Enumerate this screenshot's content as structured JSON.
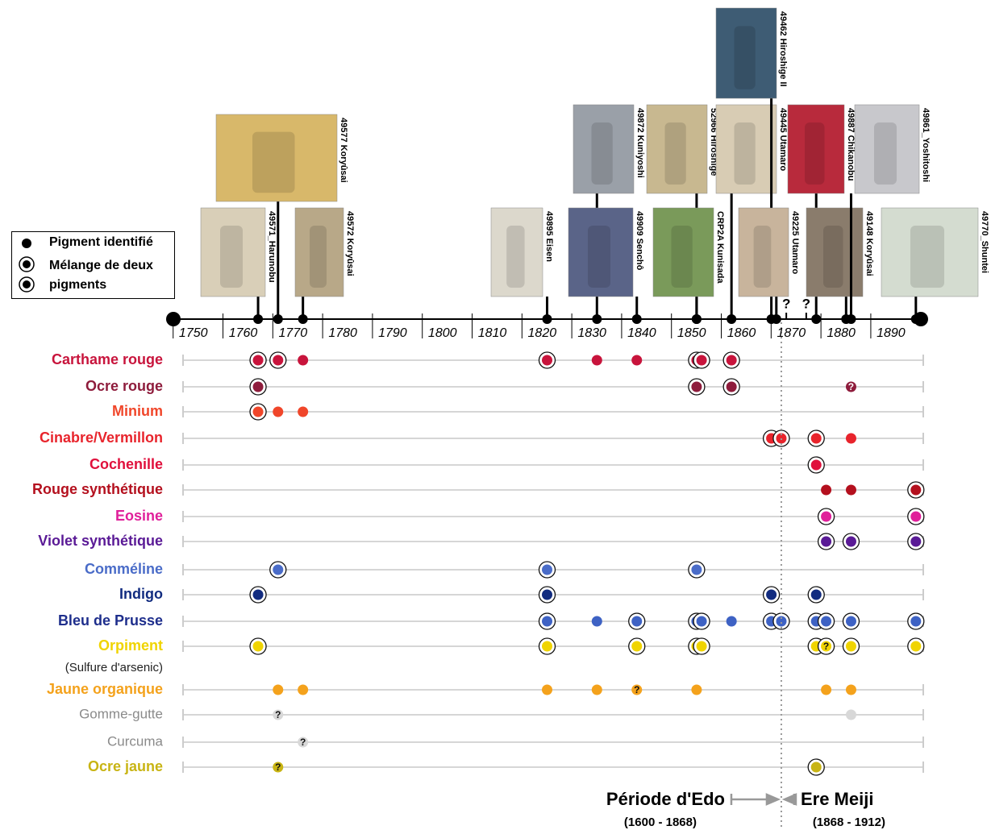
{
  "legend": {
    "single": "Pigment identifié",
    "mixture": "Mélange de deux pigments"
  },
  "axis": {
    "xlim": [
      1746,
      1896
    ],
    "ticks": [
      1750,
      1760,
      1770,
      1780,
      1790,
      1800,
      1810,
      1820,
      1830,
      1840,
      1850,
      1860,
      1870,
      1880,
      1890
    ]
  },
  "axis_marks": [
    {
      "year": 1869,
      "label": "?"
    },
    {
      "year": 1873,
      "label": "?"
    }
  ],
  "prints": [
    {
      "label": "49571_Harunobu",
      "year": 1763
    },
    {
      "label": "49577 Koryûsai",
      "year": 1767
    },
    {
      "label": "49572 Koryûsai",
      "year": 1772
    },
    {
      "label": "49895 Eisen",
      "year": 1821
    },
    {
      "label": "49872 Kuniyoshi",
      "year": 1831
    },
    {
      "label": "49909 Senchô",
      "year": 1839
    },
    {
      "label": "52966 Hiroshige",
      "year": 1851
    },
    {
      "label": "CRP2A Kunisada",
      "year": 1851
    },
    {
      "label": "49445 Utamaro",
      "year": 1858
    },
    {
      "label": "49462 Hiroshige II",
      "year": 1866
    },
    {
      "label": "49225 Utamaro",
      "year": 1867
    },
    {
      "label": "49887 Chikanobu",
      "year": 1875
    },
    {
      "label": "49148 Koryûsai",
      "year": 1881
    },
    {
      "label": "49861_Yoshitoshi",
      "year": 1882
    },
    {
      "label": "49770_Shuntei",
      "year": 1895
    }
  ],
  "pigments": [
    {
      "name": "Carthame rouge",
      "color": "#c8143c",
      "dots": [
        {
          "year": 1763,
          "mixture": true
        },
        {
          "year": 1767,
          "mixture": true
        },
        {
          "year": 1772,
          "mixture": false
        },
        {
          "year": 1821,
          "mixture": true
        },
        {
          "year": 1831,
          "mixture": false
        },
        {
          "year": 1839,
          "mixture": false
        },
        {
          "year": 1851,
          "mixture": true
        },
        {
          "year": 1852,
          "mixture": true
        },
        {
          "year": 1858,
          "mixture": true
        }
      ]
    },
    {
      "name": "Ocre rouge",
      "color": "#8e1c3c",
      "dots": [
        {
          "year": 1763,
          "mixture": true
        },
        {
          "year": 1851,
          "mixture": true
        },
        {
          "year": 1858,
          "mixture": true
        },
        {
          "year": 1882,
          "mixture": false,
          "label": "?"
        }
      ]
    },
    {
      "name": "Minium",
      "color": "#f0462a",
      "dots": [
        {
          "year": 1763,
          "mixture": true
        },
        {
          "year": 1767,
          "mixture": false
        },
        {
          "year": 1772,
          "mixture": false
        }
      ]
    },
    {
      "name": "Cinabre/Vermillon",
      "color": "#e8242c",
      "dots": [
        {
          "year": 1866,
          "mixture": true
        },
        {
          "year": 1868,
          "mixture": true
        },
        {
          "year": 1875,
          "mixture": true
        },
        {
          "year": 1882,
          "mixture": false
        }
      ]
    },
    {
      "name": "Cochenille",
      "color": "#e0103c",
      "dots": [
        {
          "year": 1875,
          "mixture": true
        }
      ]
    },
    {
      "name": "Rouge synthétique",
      "color": "#b4101e",
      "dots": [
        {
          "year": 1877,
          "mixture": false
        },
        {
          "year": 1882,
          "mixture": false
        },
        {
          "year": 1895,
          "mixture": true
        }
      ]
    },
    {
      "name": "Eosine",
      "color": "#e0209a",
      "dots": [
        {
          "year": 1877,
          "mixture": true
        },
        {
          "year": 1895,
          "mixture": true
        }
      ]
    },
    {
      "name": "Violet synthétique",
      "color": "#5a1a96",
      "dots": [
        {
          "year": 1877,
          "mixture": true
        },
        {
          "year": 1882,
          "mixture": true
        },
        {
          "year": 1895,
          "mixture": true
        }
      ]
    },
    {
      "name": "Comméline",
      "color": "#4a6cc8",
      "dots": [
        {
          "year": 1767,
          "mixture": true
        },
        {
          "year": 1821,
          "mixture": true
        },
        {
          "year": 1851,
          "mixture": true
        }
      ]
    },
    {
      "name": "Indigo",
      "color": "#122c80",
      "dots": [
        {
          "year": 1763,
          "mixture": true
        },
        {
          "year": 1821,
          "mixture": true
        },
        {
          "year": 1866,
          "mixture": true
        },
        {
          "year": 1875,
          "mixture": true
        }
      ]
    },
    {
      "name": "Bleu de Prusse",
      "color": "#1e2e8c",
      "dot_color": "#3e62c4",
      "dots": [
        {
          "year": 1821,
          "mixture": true
        },
        {
          "year": 1831,
          "mixture": false
        },
        {
          "year": 1839,
          "mixture": true
        },
        {
          "year": 1851,
          "mixture": true
        },
        {
          "year": 1852,
          "mixture": true
        },
        {
          "year": 1858,
          "mixture": false
        },
        {
          "year": 1866,
          "mixture": true
        },
        {
          "year": 1868,
          "mixture": true
        },
        {
          "year": 1875,
          "mixture": true
        },
        {
          "year": 1877,
          "mixture": true
        },
        {
          "year": 1882,
          "mixture": true
        },
        {
          "year": 1895,
          "mixture": true
        }
      ]
    },
    {
      "name": "Orpiment",
      "note": "(Sulfure d'arsenic)",
      "color": "#f0d400",
      "dots": [
        {
          "year": 1763,
          "mixture": true
        },
        {
          "year": 1821,
          "mixture": true
        },
        {
          "year": 1839,
          "mixture": true
        },
        {
          "year": 1851,
          "mixture": true
        },
        {
          "year": 1852,
          "mixture": true
        },
        {
          "year": 1875,
          "mixture": true
        },
        {
          "year": 1877,
          "mixture": true,
          "label": "?"
        },
        {
          "year": 1882,
          "mixture": true
        },
        {
          "year": 1895,
          "mixture": true
        }
      ]
    },
    {
      "name": "Jaune organique",
      "color": "#f4a21c",
      "dots": [
        {
          "year": 1767,
          "mixture": false
        },
        {
          "year": 1772,
          "mixture": false
        },
        {
          "year": 1821,
          "mixture": false
        },
        {
          "year": 1831,
          "mixture": false
        },
        {
          "year": 1839,
          "mixture": false,
          "label": "?"
        },
        {
          "year": 1851,
          "mixture": false
        },
        {
          "year": 1877,
          "mixture": false
        },
        {
          "year": 1882,
          "mixture": false
        }
      ]
    },
    {
      "name": "Gomme-gutte",
      "color": "#8a8a8a",
      "dot_color": "#d8d8d8",
      "dots": [
        {
          "year": 1767,
          "mixture": false,
          "label": "?"
        },
        {
          "year": 1882,
          "mixture": false
        }
      ]
    },
    {
      "name": "Curcuma",
      "color": "#8a8a8a",
      "dot_color": "#d8d8d8",
      "dots": [
        {
          "year": 1772,
          "mixture": false,
          "label": "?"
        }
      ]
    },
    {
      "name": "Ocre jaune",
      "color": "#c8b414",
      "dots": [
        {
          "year": 1767,
          "mixture": false,
          "label": "?"
        },
        {
          "year": 1875,
          "mixture": true
        }
      ]
    }
  ],
  "divider_year": 1868,
  "periods": [
    {
      "name": "Période d'Edo",
      "dates": "(1600 - 1868)"
    },
    {
      "name": "Ere Meiji",
      "dates": "(1868 - 1912)"
    }
  ]
}
